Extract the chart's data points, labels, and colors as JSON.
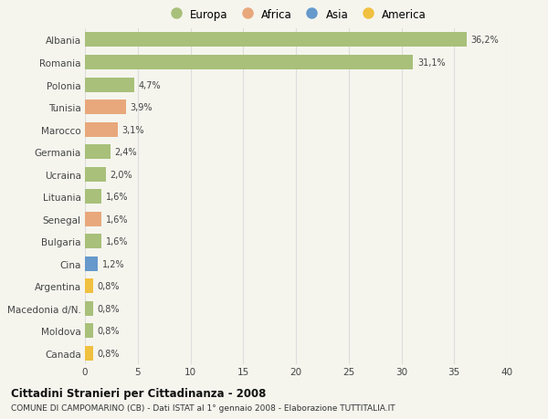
{
  "countries": [
    "Albania",
    "Romania",
    "Polonia",
    "Tunisia",
    "Marocco",
    "Germania",
    "Ucraina",
    "Lituania",
    "Senegal",
    "Bulgaria",
    "Cina",
    "Argentina",
    "Macedonia d/N.",
    "Moldova",
    "Canada"
  ],
  "values": [
    36.2,
    31.1,
    4.7,
    3.9,
    3.1,
    2.4,
    2.0,
    1.6,
    1.6,
    1.6,
    1.2,
    0.8,
    0.8,
    0.8,
    0.8
  ],
  "labels": [
    "36,2%",
    "31,1%",
    "4,7%",
    "3,9%",
    "3,1%",
    "2,4%",
    "2,0%",
    "1,6%",
    "1,6%",
    "1,6%",
    "1,2%",
    "0,8%",
    "0,8%",
    "0,8%",
    "0,8%"
  ],
  "continents": [
    "Europa",
    "Europa",
    "Europa",
    "Africa",
    "Africa",
    "Europa",
    "Europa",
    "Europa",
    "Africa",
    "Europa",
    "Asia",
    "America",
    "Europa",
    "Europa",
    "America"
  ],
  "colors": {
    "Europa": "#a8c07a",
    "Africa": "#e8a87c",
    "Asia": "#6699cc",
    "America": "#f0c040"
  },
  "background_color": "#f5f5ee",
  "title1": "Cittadini Stranieri per Cittadinanza - 2008",
  "title2": "COMUNE DI CAMPOMARINO (CB) - Dati ISTAT al 1° gennaio 2008 - Elaborazione TUTTITALIA.IT",
  "xlim": [
    0,
    40
  ],
  "xticks": [
    0,
    5,
    10,
    15,
    20,
    25,
    30,
    35,
    40
  ],
  "grid_color": "#dddddd",
  "bar_height": 0.65,
  "legend_order": [
    "Europa",
    "Africa",
    "Asia",
    "America"
  ]
}
